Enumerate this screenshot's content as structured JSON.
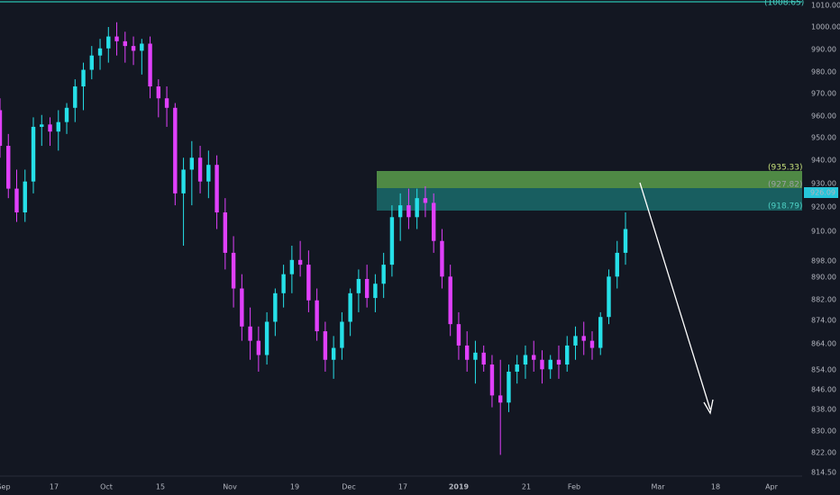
{
  "chart_data": {
    "type": "candlestick",
    "y_axis": {
      "ticks": [
        "1010.00",
        "1000.00",
        "990.00",
        "980.00",
        "970.00",
        "960.00",
        "950.00",
        "940.00",
        "930.00",
        "920.00",
        "910.00",
        "898.00",
        "890.00",
        "882.00",
        "874.00",
        "864.00",
        "854.00",
        "846.00",
        "838.00",
        "830.00",
        "822.00",
        "814.50"
      ],
      "current_price": "926.09"
    },
    "x_axis": {
      "ticks": [
        "Sep",
        "17",
        "Oct",
        "15",
        "Nov",
        "19",
        "Dec",
        "17",
        "2019",
        "21",
        "Feb",
        "Mar",
        "18",
        "Apr"
      ]
    },
    "levels": {
      "top_label": "(1008.65)",
      "upper_label": "(935.33)",
      "mid_label": "(927.82)",
      "lower_label": "(918.79)"
    },
    "candles": [
      [
        965,
        970,
        945,
        950
      ],
      [
        950,
        955,
        928,
        932
      ],
      [
        932,
        940,
        918,
        922
      ],
      [
        922,
        940,
        918,
        935
      ],
      [
        935,
        962,
        930,
        958
      ],
      [
        958,
        963,
        950,
        959
      ],
      [
        959,
        962,
        950,
        956
      ],
      [
        956,
        965,
        948,
        960
      ],
      [
        960,
        968,
        955,
        966
      ],
      [
        966,
        978,
        960,
        975
      ],
      [
        975,
        985,
        965,
        982
      ],
      [
        982,
        992,
        978,
        988
      ],
      [
        988,
        995,
        982,
        991
      ],
      [
        991,
        1000,
        985,
        996
      ],
      [
        996,
        1002,
        988,
        994
      ],
      [
        994,
        998,
        985,
        992
      ],
      [
        992,
        996,
        984,
        990
      ],
      [
        990,
        995,
        980,
        993
      ],
      [
        993,
        996,
        970,
        975
      ],
      [
        975,
        978,
        962,
        970
      ],
      [
        970,
        975,
        958,
        966
      ],
      [
        966,
        968,
        925,
        930
      ],
      [
        930,
        945,
        908,
        940
      ],
      [
        940,
        952,
        925,
        945
      ],
      [
        945,
        950,
        930,
        935
      ],
      [
        935,
        948,
        928,
        942
      ],
      [
        942,
        946,
        915,
        922
      ],
      [
        922,
        928,
        898,
        905
      ],
      [
        905,
        912,
        882,
        890
      ],
      [
        890,
        896,
        868,
        874
      ],
      [
        874,
        882,
        860,
        868
      ],
      [
        868,
        874,
        855,
        862
      ],
      [
        862,
        880,
        858,
        876
      ],
      [
        876,
        890,
        870,
        888
      ],
      [
        888,
        900,
        882,
        896
      ],
      [
        896,
        908,
        888,
        902
      ],
      [
        902,
        910,
        895,
        900
      ],
      [
        900,
        906,
        880,
        885
      ],
      [
        885,
        890,
        868,
        872
      ],
      [
        872,
        876,
        855,
        860
      ],
      [
        860,
        870,
        852,
        865
      ],
      [
        865,
        880,
        860,
        876
      ],
      [
        876,
        890,
        870,
        888
      ],
      [
        888,
        898,
        880,
        894
      ],
      [
        894,
        900,
        882,
        886
      ],
      [
        886,
        896,
        880,
        892
      ],
      [
        892,
        905,
        886,
        900
      ],
      [
        900,
        925,
        895,
        920
      ],
      [
        920,
        930,
        910,
        925
      ],
      [
        925,
        932,
        915,
        920
      ],
      [
        920,
        932,
        915,
        928
      ],
      [
        928,
        933,
        920,
        926
      ],
      [
        926,
        930,
        905,
        910
      ],
      [
        910,
        915,
        890,
        895
      ],
      [
        895,
        900,
        870,
        875
      ],
      [
        875,
        880,
        860,
        866
      ],
      [
        866,
        872,
        855,
        860
      ],
      [
        860,
        868,
        850,
        863
      ],
      [
        863,
        866,
        855,
        858
      ],
      [
        858,
        862,
        840,
        845
      ],
      [
        845,
        860,
        820,
        842
      ],
      [
        842,
        858,
        838,
        855
      ],
      [
        855,
        862,
        850,
        858
      ],
      [
        858,
        866,
        852,
        862
      ],
      [
        862,
        868,
        855,
        860
      ],
      [
        860,
        864,
        850,
        856
      ],
      [
        856,
        862,
        852,
        860
      ],
      [
        860,
        866,
        852,
        858
      ],
      [
        858,
        870,
        855,
        866
      ],
      [
        866,
        874,
        860,
        870
      ],
      [
        870,
        876,
        862,
        868
      ],
      [
        868,
        872,
        860,
        865
      ],
      [
        865,
        880,
        862,
        878
      ],
      [
        878,
        898,
        875,
        895
      ],
      [
        895,
        910,
        890,
        905
      ],
      [
        905,
        922,
        900,
        915
      ]
    ]
  }
}
